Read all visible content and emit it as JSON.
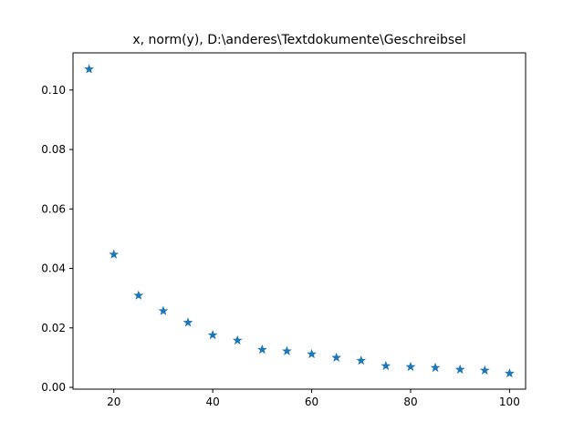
{
  "chart_data": {
    "type": "scatter",
    "title": "x, norm(y), D:\\anderes\\Textdokumente\\Geschreibsel",
    "xlabel": "",
    "ylabel": "",
    "xlim": [
      11.75,
      103.25
    ],
    "ylim": [
      -0.0006,
      0.1125
    ],
    "xticks": [
      20,
      40,
      60,
      80,
      100
    ],
    "yticks": [
      0.0,
      0.02,
      0.04,
      0.06,
      0.08,
      0.1
    ],
    "ytick_labels": [
      "0.00",
      "0.02",
      "0.04",
      "0.06",
      "0.08",
      "0.10"
    ],
    "grid": false,
    "legend": false,
    "marker": "star",
    "color": "#1f77b4",
    "series": [
      {
        "x": [
          15,
          20,
          25,
          30,
          35,
          40,
          45,
          50,
          55,
          60,
          65,
          70,
          75,
          80,
          85,
          90,
          95,
          100
        ],
        "y": [
          0.107,
          0.0447,
          0.0309,
          0.0257,
          0.0218,
          0.0176,
          0.0158,
          0.0127,
          0.0122,
          0.0112,
          0.01,
          0.009,
          0.0072,
          0.0069,
          0.0066,
          0.006,
          0.0057,
          0.0047
        ]
      }
    ]
  }
}
